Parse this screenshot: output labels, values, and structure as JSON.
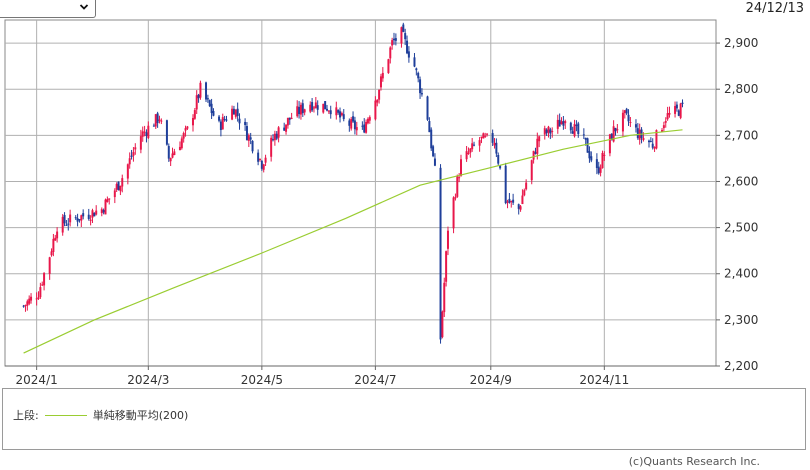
{
  "toolbar": {
    "period_select_value": "",
    "date_label": "24/12/13"
  },
  "legend": {
    "section_label": "上段:",
    "ma_label": "単純移動平均(200)",
    "ma_color": "#9acd32"
  },
  "footer": {
    "copyright": "(c)Quants Research Inc."
  },
  "colors": {
    "up": "#e8174a",
    "down": "#1f3f9a",
    "grid": "#b0b0b0"
  },
  "chart_data": {
    "type": "candlestick",
    "title": "",
    "ylim": [
      2200,
      2950
    ],
    "y_ticks": [
      2200,
      2300,
      2400,
      2500,
      2600,
      2700,
      2800,
      2900
    ],
    "y_tick_labels": [
      "2,200",
      "2,300",
      "2,400",
      "2,500",
      "2,600",
      "2,700",
      "2,800",
      "2,900"
    ],
    "x_range": [
      "2023-12-15",
      "2024-12-31"
    ],
    "x_ticks": [
      "2024-01-01",
      "2024-03-01",
      "2024-05-01",
      "2024-07-01",
      "2024-09-01",
      "2024-11-01"
    ],
    "x_tick_labels": [
      "2024/1",
      "2024/3",
      "2024/5",
      "2024/7",
      "2024/9",
      "2024/11"
    ],
    "price_path": [
      [
        "2023-12-25",
        2330
      ],
      [
        "2024-01-02",
        2360
      ],
      [
        "2024-01-08",
        2440
      ],
      [
        "2024-01-12",
        2505
      ],
      [
        "2024-01-22",
        2520
      ],
      [
        "2024-02-05",
        2540
      ],
      [
        "2024-02-15",
        2600
      ],
      [
        "2024-02-26",
        2700
      ],
      [
        "2024-03-07",
        2740
      ],
      [
        "2024-03-12",
        2650
      ],
      [
        "2024-03-22",
        2710
      ],
      [
        "2024-03-29",
        2800
      ],
      [
        "2024-04-08",
        2720
      ],
      [
        "2024-04-16",
        2760
      ],
      [
        "2024-04-26",
        2680
      ],
      [
        "2024-05-01",
        2640
      ],
      [
        "2024-05-08",
        2700
      ],
      [
        "2024-05-17",
        2740
      ],
      [
        "2024-05-27",
        2770
      ],
      [
        "2024-06-07",
        2760
      ],
      [
        "2024-06-14",
        2730
      ],
      [
        "2024-06-24",
        2710
      ],
      [
        "2024-07-02",
        2790
      ],
      [
        "2024-07-10",
        2900
      ],
      [
        "2024-07-15",
        2920
      ],
      [
        "2024-07-22",
        2850
      ],
      [
        "2024-07-29",
        2740
      ],
      [
        "2024-08-02",
        2620
      ],
      [
        "2024-08-05",
        2260
      ],
      [
        "2024-08-09",
        2500
      ],
      [
        "2024-08-16",
        2640
      ],
      [
        "2024-08-26",
        2690
      ],
      [
        "2024-09-03",
        2690
      ],
      [
        "2024-09-09",
        2560
      ],
      [
        "2024-09-16",
        2540
      ],
      [
        "2024-09-27",
        2700
      ],
      [
        "2024-10-04",
        2710
      ],
      [
        "2024-10-11",
        2740
      ],
      [
        "2024-10-22",
        2680
      ],
      [
        "2024-10-28",
        2620
      ],
      [
        "2024-11-06",
        2710
      ],
      [
        "2024-11-12",
        2740
      ],
      [
        "2024-11-20",
        2700
      ],
      [
        "2024-11-27",
        2680
      ],
      [
        "2024-12-04",
        2740
      ],
      [
        "2024-12-09",
        2750
      ],
      [
        "2024-12-13",
        2760
      ]
    ],
    "moving_average": {
      "name": "単純移動平均(200)",
      "points": [
        [
          "2023-12-25",
          2228
        ],
        [
          "2024-02-01",
          2300
        ],
        [
          "2024-03-15",
          2370
        ],
        [
          "2024-05-01",
          2445
        ],
        [
          "2024-06-15",
          2520
        ],
        [
          "2024-07-25",
          2592
        ],
        [
          "2024-09-01",
          2630
        ],
        [
          "2024-10-10",
          2670
        ],
        [
          "2024-11-15",
          2700
        ],
        [
          "2024-12-13",
          2712
        ]
      ]
    }
  }
}
